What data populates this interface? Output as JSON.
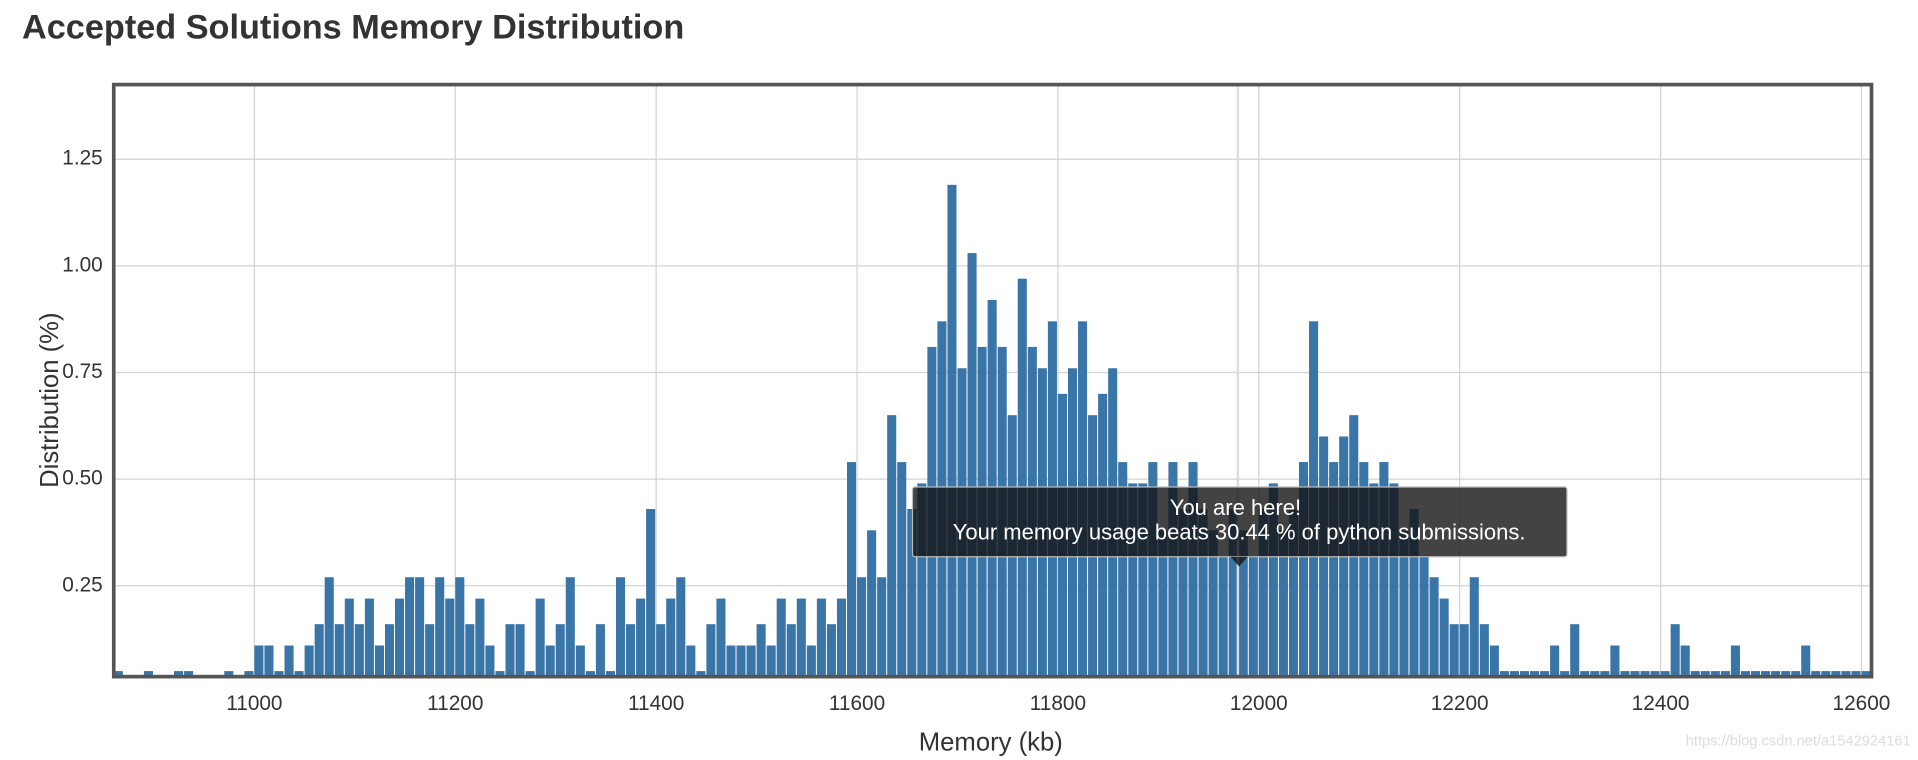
{
  "chart_data": {
    "type": "histogram",
    "title": "Accepted Solutions Memory Distribution",
    "x_label": "Memory (kb)",
    "y_label": "Distribution (%)",
    "color": "#3a75a8",
    "grid": true,
    "bins": [
      10860,
      10870,
      10880,
      10890,
      10900,
      10910,
      10920,
      10930,
      10940,
      10950,
      10960,
      10970,
      10980,
      10990,
      11000,
      11010,
      11020,
      11030,
      11040,
      11050,
      11060,
      11070,
      11080,
      11090,
      11100,
      11110,
      11120,
      11130,
      11140,
      11150,
      11160,
      11170,
      11180,
      11190,
      11200,
      11210,
      11220,
      11230,
      11240,
      11250,
      11260,
      11270,
      11280,
      11290,
      11300,
      11310,
      11320,
      11330,
      11340,
      11350,
      11360,
      11370,
      11380,
      11390,
      11400,
      11410,
      11420,
      11430,
      11440,
      11450,
      11460,
      11470,
      11480,
      11490,
      11500,
      11510,
      11520,
      11530,
      11540,
      11550,
      11560,
      11570,
      11580,
      11590,
      11600,
      11610,
      11620,
      11630,
      11640,
      11650,
      11660,
      11670,
      11680,
      11690,
      11700,
      11710,
      11720,
      11730,
      11740,
      11750,
      11760,
      11770,
      11780,
      11790,
      11800,
      11810,
      11820,
      11830,
      11840,
      11850,
      11860,
      11870,
      11880,
      11890,
      11900,
      11910,
      11920,
      11930,
      11940,
      11950,
      11960,
      11970,
      11980,
      11990,
      12000,
      12010,
      12020,
      12030,
      12040,
      12050,
      12060,
      12070,
      12080,
      12090,
      12100,
      12110,
      12120,
      12130,
      12140,
      12150,
      12160,
      12170,
      12180,
      12190,
      12200,
      12210,
      12220,
      12230,
      12240,
      12250,
      12260,
      12270,
      12280,
      12290,
      12300,
      12310,
      12320,
      12330,
      12340,
      12350,
      12360,
      12370,
      12380,
      12390,
      12400,
      12410,
      12420,
      12430,
      12440,
      12450,
      12460,
      12470,
      12480,
      12490,
      12500,
      12510,
      12520,
      12530,
      12540,
      12550,
      12560,
      12570,
      12580,
      12590,
      12600,
      12610
    ],
    "values": [
      0.05,
      0,
      0,
      0.05,
      0,
      0,
      0.05,
      0.05,
      0,
      0,
      0,
      0.05,
      0,
      0.05,
      0.11,
      0.11,
      0.05,
      0.11,
      0.05,
      0.11,
      0.16,
      0.27,
      0.16,
      0.22,
      0.16,
      0.22,
      0.11,
      0.16,
      0.22,
      0.27,
      0.27,
      0.16,
      0.27,
      0.22,
      0.27,
      0.16,
      0.22,
      0.11,
      0.05,
      0.16,
      0.16,
      0.05,
      0.22,
      0.11,
      0.16,
      0.27,
      0.11,
      0.05,
      0.16,
      0.05,
      0.27,
      0.16,
      0.22,
      0.43,
      0.16,
      0.22,
      0.27,
      0.11,
      0.05,
      0.16,
      0.22,
      0.11,
      0.11,
      0.11,
      0.16,
      0.11,
      0.22,
      0.16,
      0.22,
      0.11,
      0.22,
      0.16,
      0.22,
      0.54,
      0.27,
      0.38,
      0.27,
      0.65,
      0.54,
      0.43,
      0.49,
      0.81,
      0.87,
      1.19,
      0.76,
      1.03,
      0.81,
      0.92,
      0.81,
      0.65,
      0.97,
      0.81,
      0.76,
      0.87,
      0.7,
      0.76,
      0.87,
      0.65,
      0.7,
      0.76,
      0.54,
      0.49,
      0.49,
      0.54,
      0.38,
      0.54,
      0.43,
      0.54,
      0.43,
      0.38,
      0.32,
      0.43,
      0.38,
      0.32,
      0.43,
      0.49,
      0.38,
      0.43,
      0.54,
      0.87,
      0.6,
      0.54,
      0.6,
      0.65,
      0.54,
      0.49,
      0.54,
      0.49,
      0.38,
      0.43,
      0.32,
      0.27,
      0.22,
      0.16,
      0.16,
      0.27,
      0.16,
      0.11,
      0.05,
      0.05,
      0.05,
      0.05,
      0.05,
      0.11,
      0.05,
      0.16,
      0.05,
      0.05,
      0.05,
      0.11,
      0.05,
      0.05,
      0.05,
      0.05,
      0.05,
      0.16,
      0.11,
      0.05,
      0.05,
      0.05,
      0.05,
      0.11,
      0.05,
      0.05,
      0.05,
      0.05,
      0.05,
      0.05,
      0.11,
      0.05,
      0.05,
      0.05,
      0.05,
      0.05,
      0.05
    ],
    "xlim": [
      10860,
      12610
    ],
    "xticks": [
      11000,
      11200,
      11400,
      11600,
      11800,
      12000,
      12200,
      12400,
      12600
    ],
    "ylim": [
      0.037,
      1.425
    ],
    "yticks": [
      0.25,
      {
        "value": 0.5,
        "label": "0.50"
      },
      0.75,
      {
        "value": 1,
        "label": "1.00"
      },
      1.25
    ],
    "annotations": [
      "You are here!",
      "Your memory usage beats 30.44 % of python submissions."
    ],
    "watermark": "https://blog.csdn.net/a1542924161"
  }
}
